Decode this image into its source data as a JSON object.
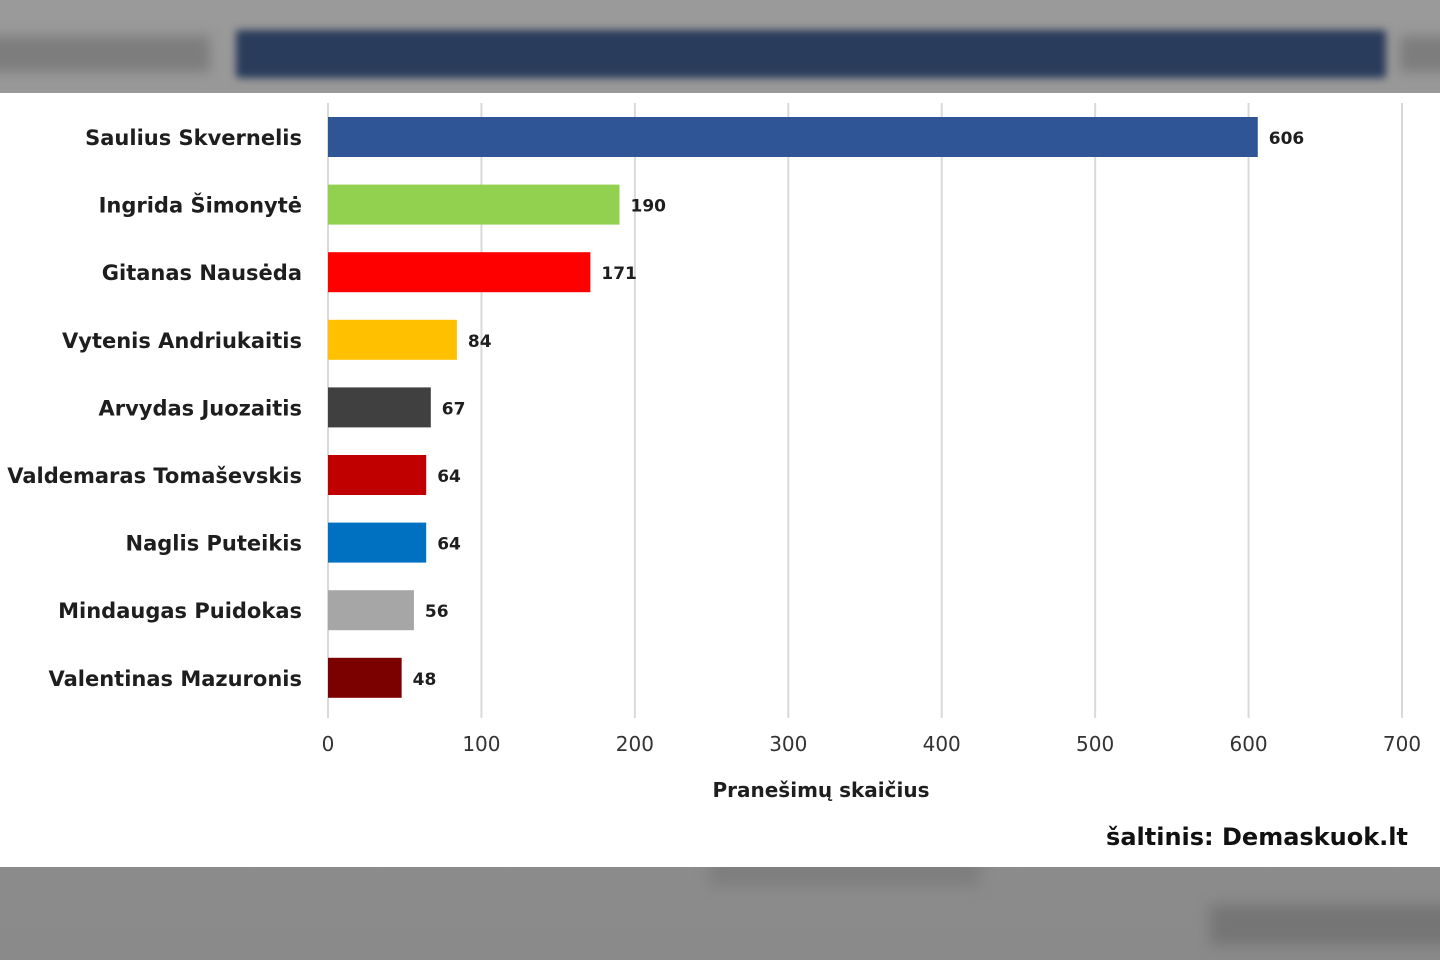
{
  "chart_data": {
    "type": "bar",
    "orientation": "horizontal",
    "categories": [
      "Saulius Skvernelis",
      "Ingrida Šimonytė",
      "Gitanas Nausėda",
      "Vytenis Andriukaitis",
      "Arvydas Juozaitis",
      "Valdemaras Tomaševskis",
      "Naglis Puteikis",
      "Mindaugas Puidokas",
      "Valentinas Mazuronis"
    ],
    "values": [
      606,
      190,
      171,
      84,
      67,
      64,
      64,
      56,
      48
    ],
    "colors": [
      "#2f5597",
      "#92d050",
      "#ff0000",
      "#ffc000",
      "#404040",
      "#c00000",
      "#0070c0",
      "#a6a6a6",
      "#7b0000"
    ],
    "title": "",
    "xlabel": "Pranešimų skaičius",
    "ylabel": "",
    "xlim": [
      0,
      700
    ],
    "xticks": [
      0,
      100,
      200,
      300,
      400,
      500,
      600,
      700
    ],
    "grid": "vertical",
    "legend": "none",
    "data_labels": true
  },
  "source": "šaltinis: Demaskuok.lt"
}
